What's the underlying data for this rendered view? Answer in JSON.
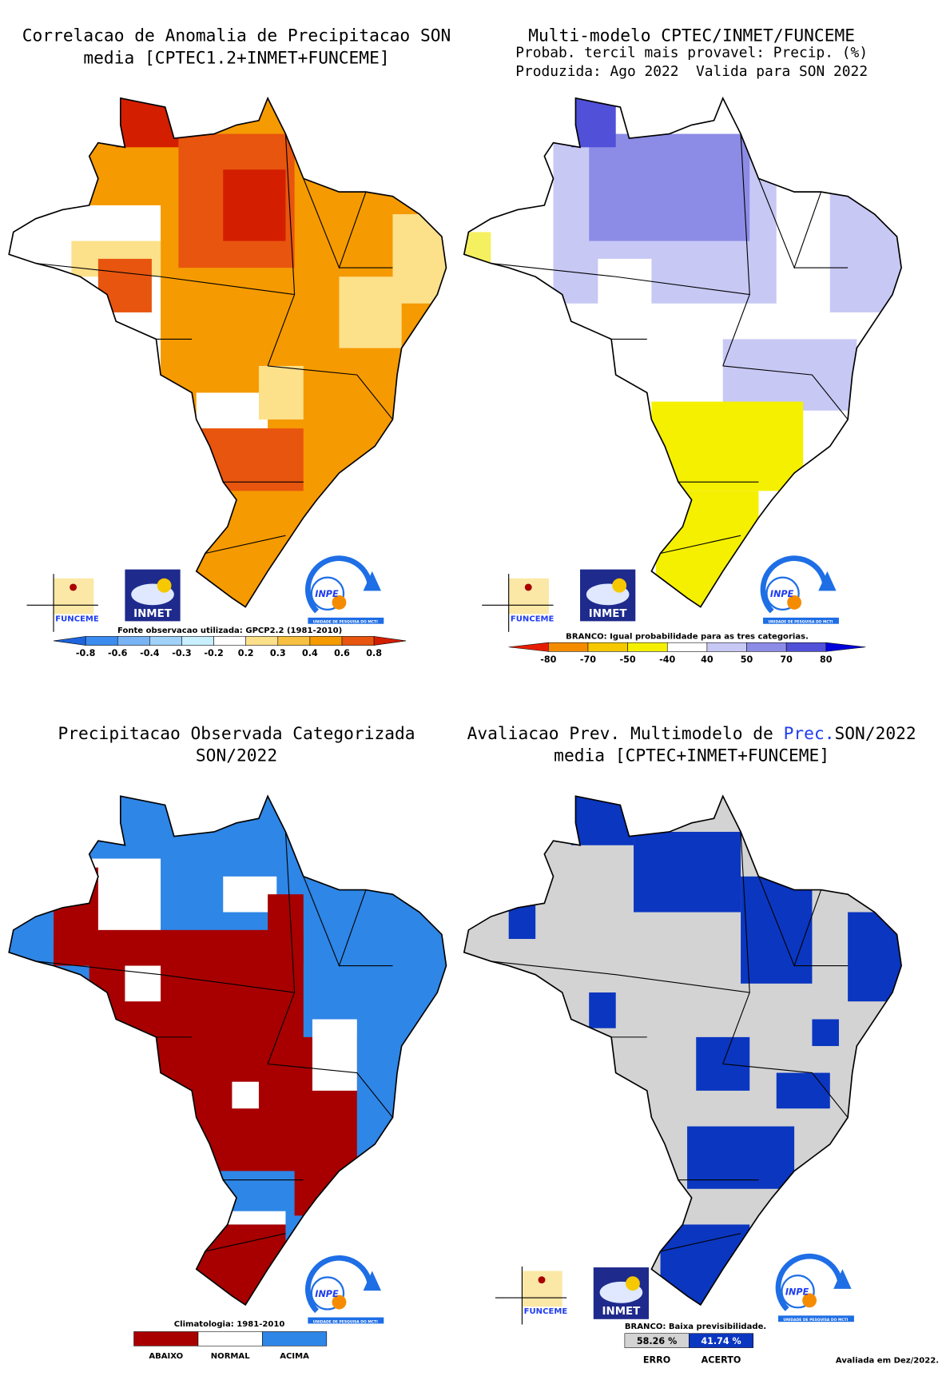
{
  "panels": [
    {
      "title": [
        "Correlacao de Anomalia de Precipitacao SON",
        "media [CPTEC1.2+INMET+FUNCEME]"
      ],
      "legend_title": "Fonte observacao utilizada: GPCP2.2 (1981-2010)",
      "legend_labels": [
        "-0.8",
        "-0.6",
        "-0.4",
        "-0.3",
        "-0.2",
        "0.2",
        "0.3",
        "0.4",
        "0.6",
        "0.8"
      ],
      "legend_colors": [
        "#1e64dc",
        "#3c8cf0",
        "#78b4f5",
        "#a0d2fa",
        "#c8f0ff",
        "#ffffff",
        "#fde08a",
        "#f8c040",
        "#f59a00",
        "#e8550f",
        "#d41e00"
      ]
    },
    {
      "title": [
        "Multi-modelo CPTEC/INMET/FUNCEME",
        "Probab. tercil mais provavel: Precip. (%)",
        "Produzida: Ago 2022  Valida para SON 2022"
      ],
      "legend_title": "BRANCO: Igual probabilidade para as tres categorias.",
      "legend_labels": [
        "-80",
        "-70",
        "-50",
        "-40",
        "40",
        "50",
        "70",
        "80"
      ],
      "legend_colors": [
        "#e61e00",
        "#f58c00",
        "#f5c800",
        "#f5f000",
        "#ffffff",
        "#c8c8f5",
        "#8c8ce6",
        "#5050d8",
        "#0000dc"
      ]
    },
    {
      "title": [
        "Precipitacao Observada Categorizada",
        "SON/2022"
      ],
      "legend_title": "Climatologia: 1981-2010",
      "legend_labels": [
        "ABAIXO",
        "NORMAL",
        "ACIMA"
      ],
      "legend_colors": [
        "#a80000",
        "#ffffff",
        "#2e86e6"
      ]
    },
    {
      "title": [
        [
          "Avaliacao Prev. Multimodelo de ",
          "Prec.",
          "SON/2022"
        ],
        "media [CPTEC+INMET+FUNCEME]"
      ],
      "legend_title": "BRANCO: Baixa previsibilidade.",
      "legend_labels": [
        "58.26 %",
        "41.74 %"
      ],
      "legend_sublabels": [
        "ERRO",
        "ACERTO"
      ],
      "legend_colors": [
        "#d3d3d3",
        "#0a36c0"
      ]
    }
  ],
  "logos": {
    "funceme": "FUNCEME",
    "inmet": "INMET",
    "inpe": "INPE",
    "inpe_sub": "UNIDADE DE PESQUISA DO MCTI"
  },
  "footer": "Avaliada em Dez/2022."
}
